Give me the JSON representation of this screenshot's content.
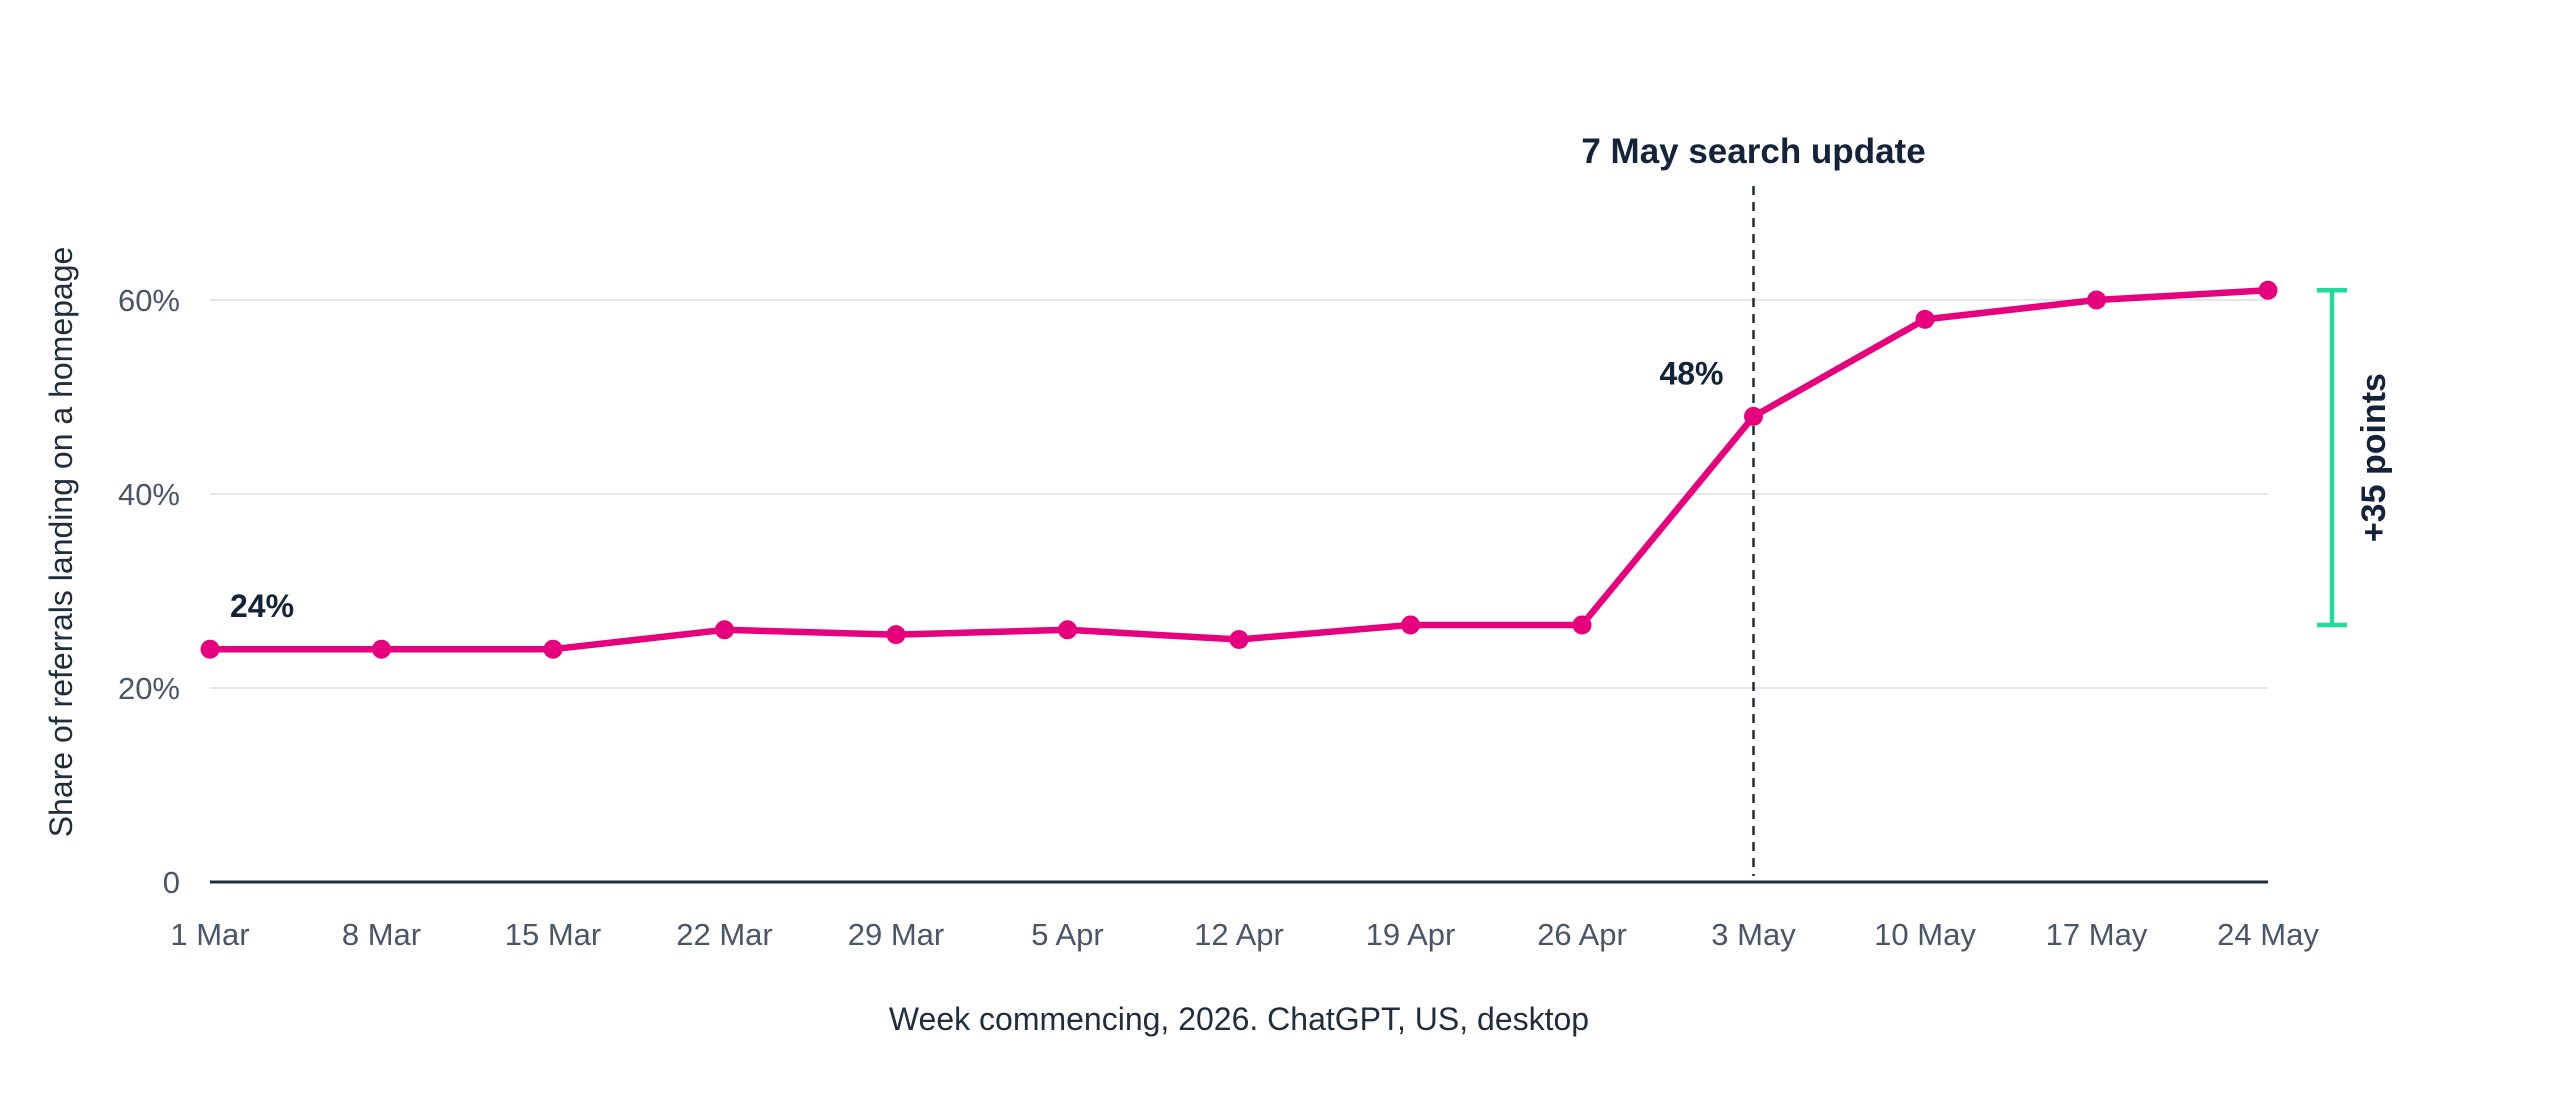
{
  "chart_data": {
    "type": "line",
    "title": "",
    "xlabel": "Week commencing, 2026. ChatGPT, US, desktop",
    "ylabel": "Share of referrals landing on a homepage",
    "categories": [
      "1 Mar",
      "8 Mar",
      "15 Mar",
      "22 Mar",
      "29 Mar",
      "5 Apr",
      "12 Apr",
      "19 Apr",
      "26 Apr",
      "3 May",
      "10 May",
      "17 May",
      "24 May"
    ],
    "series": [
      {
        "values": [
          24,
          24,
          24,
          26,
          25.5,
          26,
          25,
          26.5,
          26.5,
          48,
          58,
          60,
          61
        ],
        "color": "#e6007e"
      }
    ],
    "ylim": [
      0,
      60
    ],
    "yticks": [
      {
        "value": 0,
        "label": "0"
      },
      {
        "value": 20,
        "label": "20%"
      },
      {
        "value": 40,
        "label": "40%"
      },
      {
        "value": 60,
        "label": "60%"
      }
    ],
    "grid": true,
    "data_labels": [
      {
        "index": 0,
        "text": "24%"
      },
      {
        "index": 9,
        "text": "48%"
      }
    ],
    "annotations": {
      "event": {
        "index": 9,
        "label": "7 May search update"
      },
      "bracket": {
        "from": 26.5,
        "to": 61,
        "label": "+35 points",
        "color": "#1fdc9a"
      }
    },
    "colors": {
      "line": "#e6007e",
      "axis": "#1f2d3d",
      "grid": "#dcdfe3",
      "text": "#14233a",
      "tick": "#4a5568",
      "bracket": "#1fdc9a"
    }
  }
}
